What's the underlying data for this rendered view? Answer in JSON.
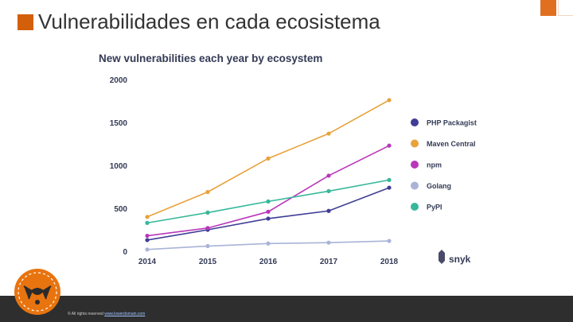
{
  "slide": {
    "title": "Vulnerabilidades en cada ecosistema",
    "footer_copyright": "© All rights reserved",
    "footer_link": "www.lowerdomain.com",
    "accent_color": "#d35f0b",
    "footer_bg": "#2e2e2e"
  },
  "chart_data": {
    "type": "line",
    "title": "New vulnerabilities each year by ecosystem",
    "x": [
      2014,
      2015,
      2016,
      2017,
      2018
    ],
    "x_ticks": [
      "2014",
      "2015",
      "2016",
      "2017",
      "2018"
    ],
    "y_ticks": [
      "0",
      "500",
      "1000",
      "1500",
      "2000"
    ],
    "ylim": [
      0,
      2000
    ],
    "xlabel": "",
    "ylabel": "",
    "legend_position": "right",
    "brand": "snyk",
    "series": [
      {
        "name": "PHP Packagist",
        "color": "#3f3d96",
        "values": [
          130,
          250,
          380,
          470,
          740
        ]
      },
      {
        "name": "Maven Central",
        "color": "#e8a23a",
        "values": [
          400,
          690,
          1080,
          1370,
          1760
        ]
      },
      {
        "name": "npm",
        "color": "#b936b9",
        "values": [
          180,
          270,
          460,
          880,
          1230
        ]
      },
      {
        "name": "Golang",
        "color": "#a9b4d6",
        "values": [
          20,
          60,
          90,
          100,
          120
        ]
      },
      {
        "name": "PyPI",
        "color": "#36b89a",
        "values": [
          330,
          450,
          580,
          700,
          830
        ]
      }
    ]
  }
}
